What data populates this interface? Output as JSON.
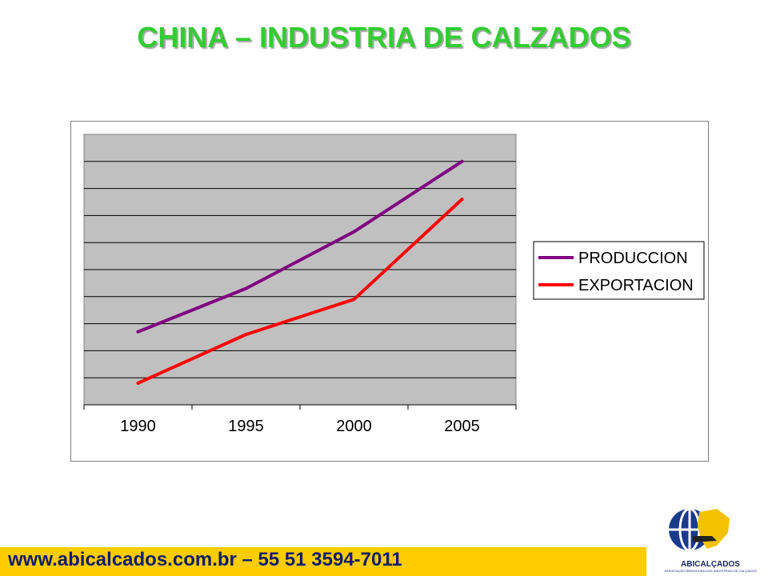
{
  "slide": {
    "title": "CHINA – INDUSTRIA DE CALZADOS",
    "footer": "www.abicalcados.com.br – 55 51 3594-7011",
    "logo_name": "ABICALÇADOS",
    "logo_subtitle": "ASSOCIAÇÃO BRASILEIRA DAS INDÚSTRIAS DE CALÇADOS"
  },
  "colors": {
    "title": "#33cc33",
    "footer_bar": "#ffcc00",
    "plot_background": "#c0c0c0",
    "series_produccion": "#800080",
    "series_exportacion": "#ff0000"
  },
  "chart_data": {
    "type": "line",
    "title": "",
    "xlabel": "",
    "ylabel": "",
    "categories": [
      "1990",
      "1995",
      "2000",
      "2005"
    ],
    "ylim": [
      0,
      10
    ],
    "y_tick_labels": false,
    "grid": true,
    "legend_position": "right",
    "series": [
      {
        "name": "PRODUCCION",
        "values": [
          2.7,
          4.3,
          6.4,
          9.0
        ]
      },
      {
        "name": "EXPORTACION",
        "values": [
          0.8,
          2.6,
          3.9,
          7.6
        ]
      }
    ]
  }
}
